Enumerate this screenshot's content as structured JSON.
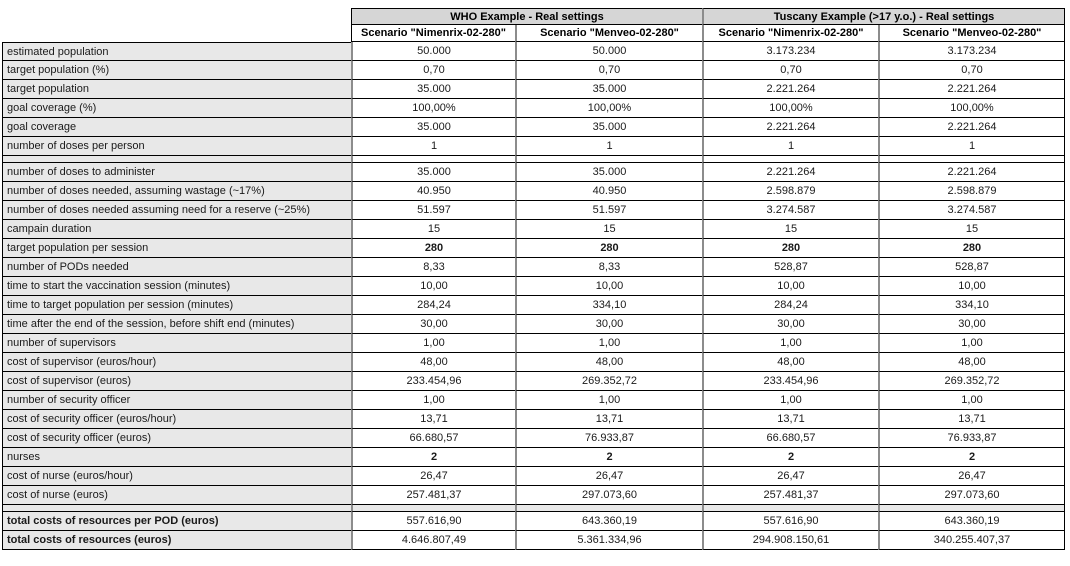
{
  "table": {
    "col_groups": [
      {
        "label": "WHO Example - Real settings"
      },
      {
        "label": "Tuscany Example (>17 y.o.) - Real settings"
      }
    ],
    "scenario_headers": [
      "Scenario \"Nimenrix-02-280\"",
      "Scenario \"Menveo-02-280\"",
      "Scenario \"Nimenrix-02-280\"",
      "Scenario \"Menveo-02-280\""
    ],
    "rows": [
      {
        "label": "estimated population",
        "values": [
          "50.000",
          "50.000",
          "3.173.234",
          "3.173.234"
        ]
      },
      {
        "label": "target population (%)",
        "values": [
          "0,70",
          "0,70",
          "0,70",
          "0,70"
        ]
      },
      {
        "label": "target population",
        "values": [
          "35.000",
          "35.000",
          "2.221.264",
          "2.221.264"
        ]
      },
      {
        "label": "goal coverage (%)",
        "values": [
          "100,00%",
          "100,00%",
          "100,00%",
          "100,00%"
        ]
      },
      {
        "label": "goal coverage",
        "values": [
          "35.000",
          "35.000",
          "2.221.264",
          "2.221.264"
        ]
      },
      {
        "label": "number of doses per person",
        "values": [
          "1",
          "1",
          "1",
          "1"
        ]
      },
      {
        "type": "spacer"
      },
      {
        "label": "number of doses to administer",
        "values": [
          "35.000",
          "35.000",
          "2.221.264",
          "2.221.264"
        ]
      },
      {
        "label": "number of doses needed, assuming wastage (~17%)",
        "values": [
          "40.950",
          "40.950",
          "2.598.879",
          "2.598.879"
        ]
      },
      {
        "label": "number of doses needed assuming need for a reserve (~25%)",
        "values": [
          "51.597",
          "51.597",
          "3.274.587",
          "3.274.587"
        ]
      },
      {
        "label": "campain duration",
        "values": [
          "15",
          "15",
          "15",
          "15"
        ]
      },
      {
        "label": "target population per session",
        "values": [
          "280",
          "280",
          "280",
          "280"
        ],
        "bold_values": true
      },
      {
        "label": "number of PODs needed",
        "values": [
          "8,33",
          "8,33",
          "528,87",
          "528,87"
        ]
      },
      {
        "label": "time to start the vaccination session (minutes)",
        "values": [
          "10,00",
          "10,00",
          "10,00",
          "10,00"
        ]
      },
      {
        "label": "time to target population per session (minutes)",
        "values": [
          "284,24",
          "334,10",
          "284,24",
          "334,10"
        ]
      },
      {
        "label": "time after the end of the session, before shift end (minutes)",
        "values": [
          "30,00",
          "30,00",
          "30,00",
          "30,00"
        ]
      },
      {
        "label": "number of supervisors",
        "values": [
          "1,00",
          "1,00",
          "1,00",
          "1,00"
        ]
      },
      {
        "label": "cost of supervisor (euros/hour)",
        "values": [
          "48,00",
          "48,00",
          "48,00",
          "48,00"
        ]
      },
      {
        "label": "cost of supervisor (euros)",
        "values": [
          "233.454,96",
          "269.352,72",
          "233.454,96",
          "269.352,72"
        ]
      },
      {
        "label": "number of security officer",
        "values": [
          "1,00",
          "1,00",
          "1,00",
          "1,00"
        ]
      },
      {
        "label": "cost of security officer (euros/hour)",
        "values": [
          "13,71",
          "13,71",
          "13,71",
          "13,71"
        ]
      },
      {
        "label": "cost of security officer (euros)",
        "values": [
          "66.680,57",
          "76.933,87",
          "66.680,57",
          "76.933,87"
        ]
      },
      {
        "label": "nurses",
        "values": [
          "2",
          "2",
          "2",
          "2"
        ],
        "bold_values": true
      },
      {
        "label": "cost of nurse (euros/hour)",
        "values": [
          "26,47",
          "26,47",
          "26,47",
          "26,47"
        ]
      },
      {
        "label": "cost of nurse (euros)",
        "values": [
          "257.481,37",
          "297.073,60",
          "257.481,37",
          "297.073,60"
        ]
      },
      {
        "type": "spacer",
        "gray": true
      },
      {
        "label": "total costs of resources per POD (euros)",
        "values": [
          "557.616,90",
          "643.360,19",
          "557.616,90",
          "643.360,19"
        ],
        "bold_label": true
      },
      {
        "label": "total costs of resources (euros)",
        "values": [
          "4.646.807,49",
          "5.361.334,96",
          "294.908.150,61",
          "340.255.407,37"
        ],
        "bold_label": true
      }
    ]
  },
  "colors": {
    "header_fill": "#d6d6d6",
    "label_fill": "#e8e8e8",
    "divider_gray": "#8c8c8c",
    "border_dark": "#000000"
  }
}
